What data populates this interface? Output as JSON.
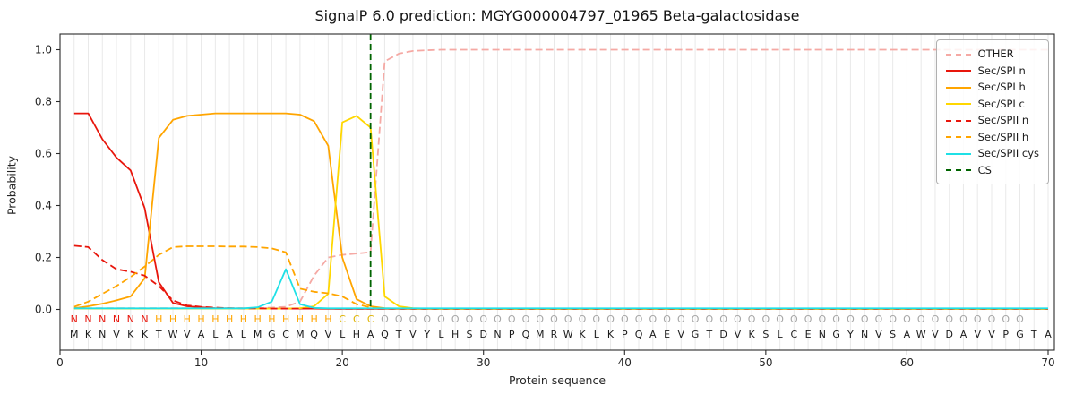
{
  "chart_data": {
    "type": "line",
    "title": "SignalP 6.0 prediction: MGYG000004797_01965 Beta-galactosidase",
    "xlabel": "Protein sequence",
    "ylabel": "Probability",
    "xticks": [
      0,
      10,
      20,
      30,
      40,
      50,
      60,
      70
    ],
    "yticks": [
      0,
      0.2,
      0.4,
      0.6,
      0.8,
      1
    ],
    "xlim": [
      0,
      70.5
    ],
    "ylim": [
      -0.16,
      1.06
    ],
    "grid": "vertical-per-residue",
    "legend_position": "upper right",
    "sequence": "MKNVKKTWVALALMGCMQVLHAQTVYLHSDNPQMRWKLKPQAEVGTDVKSLCENGYNVSAWVDAVVPGTA",
    "region_labels": "NNNNNNHHHHHHHHHHHHHCCCOOOOOOOOOOOOOOOOOOOOOOOOOOOOOOOOOOOOOOOOOOOOOO",
    "region_colors": {
      "N": "#e8160c",
      "H": "#ffa500",
      "C": "#dfb300",
      "O": "#a6a6a6"
    },
    "sequence_color": "#1a1a1a",
    "cs": {
      "label": "CS",
      "position": 22,
      "color": "#006400",
      "dash": true
    },
    "series": [
      {
        "name": "OTHER",
        "color": "#f5a9a4",
        "dash": true,
        "values": [
          0.005,
          0.005,
          0.005,
          0.005,
          0.005,
          0.005,
          0.005,
          0.005,
          0.005,
          0.005,
          0.005,
          0.005,
          0.005,
          0.005,
          0.007,
          0.01,
          0.03,
          0.13,
          0.2,
          0.21,
          0.215,
          0.22,
          0.955,
          0.985,
          0.995,
          0.998,
          1,
          1,
          1,
          1,
          1,
          1,
          1,
          1,
          1,
          1,
          1,
          1,
          1,
          1,
          1,
          1,
          1,
          1,
          1,
          1,
          1,
          1,
          1,
          1,
          1,
          1,
          1,
          1,
          1,
          1,
          1,
          1,
          1,
          1,
          1,
          1,
          1,
          1,
          1,
          1,
          1,
          1,
          1,
          1
        ]
      },
      {
        "name": "Sec/SPI n",
        "color": "#e8160c",
        "dash": false,
        "values": [
          0.755,
          0.755,
          0.655,
          0.585,
          0.535,
          0.39,
          0.105,
          0.025,
          0.012,
          0.008,
          0.005,
          0.004,
          0.003,
          0.003,
          0.003,
          0.003,
          0.003,
          0.003,
          0.002,
          0.002,
          0.002,
          0.002,
          0.002,
          0.002,
          0.002,
          0.002,
          0.002,
          0.002,
          0.002,
          0.002,
          0.002,
          0.002,
          0.002,
          0.002,
          0.002,
          0.002,
          0.002,
          0.002,
          0.002,
          0.002,
          0.002,
          0.002,
          0.002,
          0.002,
          0.002,
          0.002,
          0.002,
          0.002,
          0.002,
          0.002,
          0.002,
          0.002,
          0.002,
          0.002,
          0.002,
          0.002,
          0.002,
          0.002,
          0.002,
          0.002,
          0.002,
          0.002,
          0.002,
          0.002,
          0.002,
          0.002,
          0.002,
          0.002,
          0.002,
          0.002
        ]
      },
      {
        "name": "Sec/SPI h",
        "color": "#ffa500",
        "dash": false,
        "values": [
          0.005,
          0.012,
          0.022,
          0.035,
          0.05,
          0.12,
          0.66,
          0.73,
          0.745,
          0.75,
          0.755,
          0.755,
          0.755,
          0.755,
          0.755,
          0.755,
          0.75,
          0.725,
          0.63,
          0.2,
          0.04,
          0.012,
          0.005,
          0.003,
          0.002,
          0.002,
          0.002,
          0.002,
          0.002,
          0.002,
          0.002,
          0.002,
          0.002,
          0.002,
          0.002,
          0.002,
          0.002,
          0.002,
          0.002,
          0.002,
          0.002,
          0.002,
          0.002,
          0.002,
          0.002,
          0.002,
          0.002,
          0.002,
          0.002,
          0.002,
          0.002,
          0.002,
          0.002,
          0.002,
          0.002,
          0.002,
          0.002,
          0.002,
          0.002,
          0.002,
          0.002,
          0.002,
          0.002,
          0.002,
          0.002,
          0.002,
          0.002,
          0.002,
          0.002,
          0.002
        ]
      },
      {
        "name": "Sec/SPI c",
        "color": "#ffd700",
        "dash": false,
        "values": [
          0.003,
          0.003,
          0.003,
          0.003,
          0.003,
          0.003,
          0.003,
          0.003,
          0.003,
          0.003,
          0.003,
          0.003,
          0.003,
          0.003,
          0.003,
          0.003,
          0.005,
          0.012,
          0.06,
          0.72,
          0.745,
          0.7,
          0.05,
          0.012,
          0.005,
          0.003,
          0.002,
          0.002,
          0.002,
          0.002,
          0.002,
          0.002,
          0.002,
          0.002,
          0.002,
          0.002,
          0.002,
          0.002,
          0.002,
          0.002,
          0.002,
          0.002,
          0.002,
          0.002,
          0.002,
          0.002,
          0.002,
          0.002,
          0.002,
          0.002,
          0.002,
          0.002,
          0.002,
          0.002,
          0.002,
          0.002,
          0.002,
          0.002,
          0.002,
          0.002,
          0.002,
          0.002,
          0.002,
          0.002,
          0.002,
          0.002,
          0.002,
          0.002,
          0.002,
          0.002
        ]
      },
      {
        "name": "Sec/SPII n",
        "color": "#e8160c",
        "dash": true,
        "values": [
          0.245,
          0.24,
          0.19,
          0.155,
          0.145,
          0.13,
          0.09,
          0.035,
          0.015,
          0.01,
          0.007,
          0.005,
          0.004,
          0.004,
          0.003,
          0.003,
          0.003,
          0.003,
          0.003,
          0.002,
          0.002,
          0.002,
          0.002,
          0.002,
          0.002,
          0.002,
          0.002,
          0.002,
          0.002,
          0.002,
          0.002,
          0.002,
          0.002,
          0.002,
          0.002,
          0.002,
          0.002,
          0.002,
          0.002,
          0.002,
          0.002,
          0.002,
          0.002,
          0.002,
          0.002,
          0.002,
          0.002,
          0.002,
          0.002,
          0.002,
          0.002,
          0.002,
          0.002,
          0.002,
          0.002,
          0.002,
          0.002,
          0.002,
          0.002,
          0.002,
          0.002,
          0.002,
          0.002,
          0.002,
          0.002,
          0.002,
          0.002,
          0.002,
          0.002,
          0.002
        ]
      },
      {
        "name": "Sec/SPII h",
        "color": "#ffa500",
        "dash": true,
        "values": [
          0.01,
          0.03,
          0.06,
          0.09,
          0.125,
          0.165,
          0.21,
          0.24,
          0.243,
          0.243,
          0.243,
          0.242,
          0.242,
          0.24,
          0.235,
          0.22,
          0.08,
          0.068,
          0.062,
          0.05,
          0.02,
          0.008,
          0.004,
          0.003,
          0.003,
          0.003,
          0.003,
          0.003,
          0.003,
          0.003,
          0.003,
          0.003,
          0.003,
          0.003,
          0.003,
          0.003,
          0.003,
          0.003,
          0.003,
          0.003,
          0.003,
          0.003,
          0.003,
          0.003,
          0.003,
          0.003,
          0.003,
          0.003,
          0.003,
          0.003,
          0.003,
          0.003,
          0.003,
          0.003,
          0.003,
          0.003,
          0.003,
          0.003,
          0.003,
          0.003,
          0.003,
          0.003,
          0.003,
          0.003,
          0.003,
          0.003,
          0.003,
          0.003,
          0.003,
          0.003
        ]
      },
      {
        "name": "Sec/SPII cys",
        "color": "#1fe0e6",
        "dash": false,
        "values": [
          0.004,
          0.004,
          0.004,
          0.004,
          0.004,
          0.004,
          0.004,
          0.004,
          0.004,
          0.004,
          0.004,
          0.004,
          0.004,
          0.008,
          0.03,
          0.155,
          0.02,
          0.006,
          0.004,
          0.004,
          0.004,
          0.004,
          0.004,
          0.004,
          0.004,
          0.004,
          0.004,
          0.004,
          0.004,
          0.004,
          0.004,
          0.004,
          0.004,
          0.004,
          0.004,
          0.004,
          0.004,
          0.004,
          0.004,
          0.004,
          0.004,
          0.004,
          0.004,
          0.004,
          0.004,
          0.004,
          0.004,
          0.004,
          0.004,
          0.004,
          0.004,
          0.004,
          0.004,
          0.004,
          0.004,
          0.004,
          0.004,
          0.004,
          0.004,
          0.004,
          0.004,
          0.004,
          0.004,
          0.004,
          0.004,
          0.004,
          0.004,
          0.004,
          0.004,
          0.004
        ]
      }
    ]
  }
}
